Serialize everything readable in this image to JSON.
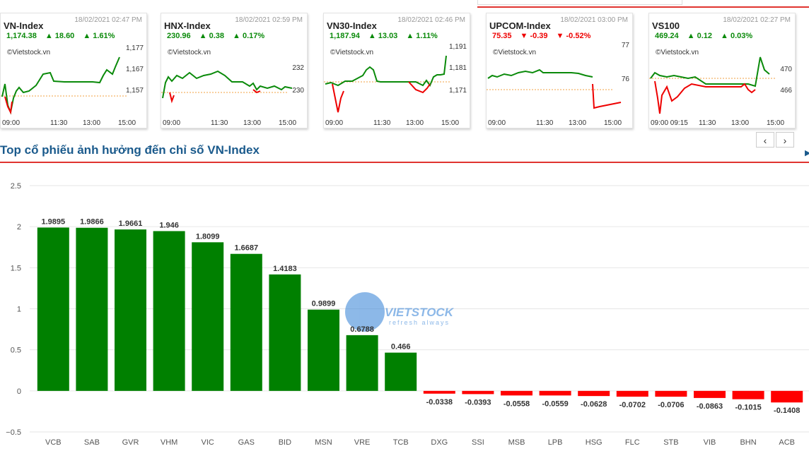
{
  "indices": [
    {
      "name": "VN-Index",
      "date": "18/02/2021 02:47 PM",
      "value": "1,174.38",
      "change": "18.60",
      "pct": "1.61%",
      "dir": "up",
      "source": "©Vietstock.vn",
      "y_ticks": [
        "1,177",
        "1,167",
        "1,157"
      ],
      "x_ticks": [
        "09:00",
        "11:30",
        "13:00",
        "15:00"
      ]
    },
    {
      "name": "HNX-Index",
      "date": "18/02/2021 02:59 PM",
      "value": "230.96",
      "change": "0.38",
      "pct": "0.17%",
      "dir": "up",
      "source": "©Vietstock.vn",
      "y_ticks": [
        "232",
        "230"
      ],
      "x_ticks": [
        "09:00",
        "11:30",
        "13:00",
        "15:00"
      ]
    },
    {
      "name": "VN30-Index",
      "date": "18/02/2021 02:46 PM",
      "value": "1,187.94",
      "change": "13.03",
      "pct": "1.11%",
      "dir": "up",
      "source": "©Vietstock.vn",
      "y_ticks": [
        "1,191",
        "1,181",
        "1,171"
      ],
      "x_ticks": [
        "09:00",
        "11:30",
        "13:00",
        "15:00"
      ]
    },
    {
      "name": "UPCOM-Index",
      "date": "18/02/2021 03:00 PM",
      "value": "75.35",
      "change": "-0.39",
      "pct": "-0.52%",
      "dir": "down",
      "source": "©Vietstock.vn",
      "y_ticks": [
        "77",
        "76"
      ],
      "x_ticks": [
        "09:00",
        "11:30",
        "13:00",
        "15:00"
      ]
    },
    {
      "name": "VS100",
      "date": "18/02/2021 02:27 PM",
      "value": "469.24",
      "change": "0.12",
      "pct": "0.03%",
      "dir": "up",
      "source": "©Vietstock.vn",
      "y_ticks": [
        "470",
        "466"
      ],
      "x_ticks": [
        "09:00 09:15",
        "11:30",
        "13:00",
        "15:00"
      ]
    }
  ],
  "nav": {
    "prev": "‹",
    "next": "›"
  },
  "section_title": "Top cổ phiếu ảnh hưởng đến chỉ số VN-Index",
  "watermark": {
    "brand": "VIETSTOCK",
    "tagline": "refresh always"
  },
  "colors": {
    "positive": "#008000",
    "negative": "#ff0000",
    "title": "#1a5a8c",
    "divider": "#e0342f"
  },
  "chart_data": {
    "type": "bar",
    "categories": [
      "VCB",
      "SAB",
      "GVR",
      "VHM",
      "VIC",
      "GAS",
      "BID",
      "MSN",
      "VRE",
      "TCB",
      "DXG",
      "SSI",
      "MSB",
      "LPB",
      "HSG",
      "FLC",
      "STB",
      "VIB",
      "BHN",
      "ACB"
    ],
    "values": [
      1.9895,
      1.9866,
      1.9661,
      1.946,
      1.8099,
      1.6687,
      1.4183,
      0.9899,
      0.6788,
      0.466,
      -0.0338,
      -0.0393,
      -0.0558,
      -0.0559,
      -0.0628,
      -0.0702,
      -0.0706,
      -0.0863,
      -0.1015,
      -0.1408
    ],
    "labels": [
      "1.9895",
      "1.9866",
      "1.9661",
      "1.946",
      "1.8099",
      "1.6687",
      "1.4183",
      "0.9899",
      "0.6788",
      "0.466",
      "-0.0338",
      "-0.0393",
      "-0.0558",
      "-0.0559",
      "-0.0628",
      "-0.0702",
      "-0.0706",
      "-0.0863",
      "-0.1015",
      "-0.1408"
    ],
    "y_ticks": [
      "2.5",
      "2",
      "1.5",
      "1",
      "0.5",
      "0",
      "−0.5"
    ],
    "ylim": [
      -0.5,
      2.5
    ],
    "grid": true
  }
}
